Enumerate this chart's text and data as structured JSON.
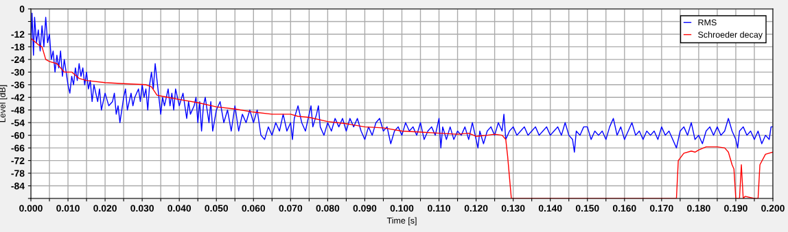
{
  "chart_data": {
    "type": "line",
    "xlabel": "Time [s]",
    "ylabel": "Level [dB]",
    "xlim": [
      0,
      0.2
    ],
    "ylim": [
      -90,
      0
    ],
    "xticks": [
      {
        "value": 0,
        "label": "0.000"
      },
      {
        "value": 0.005,
        "label": null
      },
      {
        "value": 0.01,
        "label": "0.010"
      },
      {
        "value": 0.015,
        "label": null
      },
      {
        "value": 0.02,
        "label": "0.020"
      },
      {
        "value": 0.025,
        "label": null
      },
      {
        "value": 0.03,
        "label": "0.030"
      },
      {
        "value": 0.035,
        "label": null
      },
      {
        "value": 0.04,
        "label": "0.040"
      },
      {
        "value": 0.045,
        "label": null
      },
      {
        "value": 0.05,
        "label": "0.050"
      },
      {
        "value": 0.055,
        "label": null
      },
      {
        "value": 0.06,
        "label": "0.060"
      },
      {
        "value": 0.065,
        "label": null
      },
      {
        "value": 0.07,
        "label": "0.070"
      },
      {
        "value": 0.075,
        "label": null
      },
      {
        "value": 0.08,
        "label": "0.080"
      },
      {
        "value": 0.085,
        "label": null
      },
      {
        "value": 0.09,
        "label": "0.090"
      },
      {
        "value": 0.095,
        "label": null
      },
      {
        "value": 0.1,
        "label": "0.100"
      },
      {
        "value": 0.105,
        "label": null
      },
      {
        "value": 0.11,
        "label": "0.110"
      },
      {
        "value": 0.115,
        "label": null
      },
      {
        "value": 0.12,
        "label": "0.120"
      },
      {
        "value": 0.125,
        "label": null
      },
      {
        "value": 0.13,
        "label": "0.130"
      },
      {
        "value": 0.135,
        "label": null
      },
      {
        "value": 0.14,
        "label": "0.140"
      },
      {
        "value": 0.145,
        "label": null
      },
      {
        "value": 0.15,
        "label": "0.150"
      },
      {
        "value": 0.155,
        "label": null
      },
      {
        "value": 0.16,
        "label": "0.160"
      },
      {
        "value": 0.165,
        "label": null
      },
      {
        "value": 0.17,
        "label": "0.170"
      },
      {
        "value": 0.175,
        "label": null
      },
      {
        "value": 0.18,
        "label": "0.180"
      },
      {
        "value": 0.185,
        "label": null
      },
      {
        "value": 0.19,
        "label": "0.190"
      },
      {
        "value": 0.195,
        "label": null
      },
      {
        "value": 0.2,
        "label": "0.200"
      }
    ],
    "yticks": [
      0,
      {
        "value": -6,
        "label": null
      },
      -12,
      -18,
      -24,
      -30,
      -36,
      -42,
      -48,
      -54,
      -60,
      -66,
      -72,
      -78,
      -84,
      {
        "value": -90,
        "label": null
      }
    ],
    "grid": true,
    "legend": "top right",
    "marker": "none",
    "line_style": "solid",
    "series": [
      {
        "name": "RMS",
        "color": "#0000ff",
        "x": [
          0,
          0.0003,
          0.0007,
          0.001,
          0.0015,
          0.002,
          0.0025,
          0.003,
          0.0035,
          0.004,
          0.0045,
          0.005,
          0.0055,
          0.006,
          0.0065,
          0.007,
          0.0075,
          0.008,
          0.0085,
          0.009,
          0.0095,
          0.01,
          0.0105,
          0.011,
          0.0115,
          0.012,
          0.0125,
          0.013,
          0.0135,
          0.014,
          0.0145,
          0.015,
          0.0155,
          0.016,
          0.0165,
          0.017,
          0.0175,
          0.018,
          0.0185,
          0.019,
          0.02,
          0.021,
          0.022,
          0.0225,
          0.023,
          0.0235,
          0.024,
          0.025,
          0.0255,
          0.026,
          0.027,
          0.0275,
          0.028,
          0.029,
          0.0295,
          0.03,
          0.0305,
          0.031,
          0.0315,
          0.032,
          0.0325,
          0.033,
          0.0335,
          0.034,
          0.0345,
          0.035,
          0.0355,
          0.036,
          0.037,
          0.0375,
          0.038,
          0.0385,
          0.039,
          0.04,
          0.041,
          0.042,
          0.0425,
          0.043,
          0.044,
          0.0445,
          0.045,
          0.0455,
          0.046,
          0.0465,
          0.047,
          0.048,
          0.0485,
          0.049,
          0.05,
          0.051,
          0.052,
          0.053,
          0.054,
          0.055,
          0.056,
          0.057,
          0.058,
          0.059,
          0.06,
          0.061,
          0.062,
          0.063,
          0.064,
          0.065,
          0.066,
          0.067,
          0.068,
          0.069,
          0.07,
          0.0705,
          0.071,
          0.072,
          0.073,
          0.074,
          0.075,
          0.0755,
          0.076,
          0.077,
          0.0775,
          0.078,
          0.079,
          0.08,
          0.081,
          0.082,
          0.083,
          0.084,
          0.085,
          0.086,
          0.087,
          0.088,
          0.089,
          0.09,
          0.091,
          0.092,
          0.093,
          0.094,
          0.095,
          0.096,
          0.097,
          0.098,
          0.099,
          0.1,
          0.101,
          0.102,
          0.103,
          0.104,
          0.105,
          0.106,
          0.107,
          0.108,
          0.109,
          0.11,
          0.1105,
          0.111,
          0.112,
          0.113,
          0.114,
          0.115,
          0.116,
          0.117,
          0.118,
          0.119,
          0.12,
          0.1205,
          0.121,
          0.122,
          0.123,
          0.124,
          0.125,
          0.126,
          0.127,
          0.1275,
          0.128,
          0.129,
          0.13,
          0.131,
          0.132,
          0.133,
          0.134,
          0.135,
          0.136,
          0.137,
          0.138,
          0.139,
          0.14,
          0.141,
          0.142,
          0.143,
          0.144,
          0.145,
          0.146,
          0.1465,
          0.147,
          0.148,
          0.149,
          0.15,
          0.151,
          0.152,
          0.153,
          0.154,
          0.155,
          0.156,
          0.157,
          0.158,
          0.159,
          0.16,
          0.161,
          0.162,
          0.163,
          0.164,
          0.165,
          0.166,
          0.167,
          0.168,
          0.169,
          0.17,
          0.171,
          0.172,
          0.173,
          0.174,
          0.175,
          0.176,
          0.177,
          0.178,
          0.179,
          0.18,
          0.181,
          0.182,
          0.183,
          0.184,
          0.185,
          0.186,
          0.187,
          0.188,
          0.189,
          0.19,
          0.1905,
          0.191,
          0.192,
          0.193,
          0.194,
          0.195,
          0.196,
          0.197,
          0.198,
          0.199,
          0.1995,
          0.2
        ],
        "values": [
          -18,
          -2,
          -22,
          -4,
          -16,
          -10,
          -20,
          -8,
          -18,
          -4,
          -16,
          -12,
          -24,
          -20,
          -30,
          -22,
          -28,
          -20,
          -32,
          -24,
          -30,
          -36,
          -40,
          -32,
          -36,
          -28,
          -34,
          -26,
          -32,
          -28,
          -36,
          -30,
          -38,
          -34,
          -44,
          -36,
          -40,
          -44,
          -38,
          -48,
          -40,
          -46,
          -44,
          -40,
          -50,
          -46,
          -54,
          -42,
          -38,
          -48,
          -40,
          -46,
          -42,
          -38,
          -44,
          -36,
          -42,
          -38,
          -48,
          -36,
          -30,
          -38,
          -26,
          -34,
          -42,
          -50,
          -42,
          -46,
          -38,
          -46,
          -40,
          -48,
          -38,
          -46,
          -40,
          -52,
          -44,
          -50,
          -46,
          -42,
          -54,
          -44,
          -58,
          -46,
          -42,
          -54,
          -44,
          -58,
          -48,
          -44,
          -54,
          -48,
          -58,
          -46,
          -58,
          -50,
          -54,
          -48,
          -54,
          -48,
          -60,
          -62,
          -56,
          -60,
          -54,
          -58,
          -50,
          -58,
          -54,
          -62,
          -52,
          -46,
          -54,
          -58,
          -50,
          -46,
          -56,
          -50,
          -46,
          -56,
          -60,
          -54,
          -58,
          -52,
          -56,
          -52,
          -58,
          -52,
          -56,
          -52,
          -58,
          -62,
          -56,
          -60,
          -54,
          -52,
          -58,
          -56,
          -64,
          -58,
          -56,
          -60,
          -54,
          -58,
          -56,
          -60,
          -54,
          -62,
          -58,
          -56,
          -60,
          -52,
          -66,
          -56,
          -62,
          -56,
          -62,
          -58,
          -60,
          -56,
          -62,
          -54,
          -62,
          -66,
          -58,
          -64,
          -58,
          -56,
          -60,
          -54,
          -58,
          -50,
          -62,
          -58,
          -56,
          -60,
          -58,
          -56,
          -60,
          -58,
          -56,
          -60,
          -58,
          -56,
          -60,
          -58,
          -56,
          -60,
          -54,
          -60,
          -62,
          -68,
          -58,
          -60,
          -56,
          -56,
          -62,
          -58,
          -60,
          -58,
          -62,
          -56,
          -52,
          -60,
          -56,
          -62,
          -58,
          -54,
          -60,
          -58,
          -62,
          -58,
          -60,
          -58,
          -62,
          -56,
          -60,
          -58,
          -62,
          -66,
          -58,
          -56,
          -60,
          -54,
          -62,
          -60,
          -64,
          -58,
          -56,
          -60,
          -56,
          -60,
          -58,
          -52,
          -58,
          -62,
          -66,
          -58,
          -56,
          -60,
          -58,
          -62,
          -58,
          -64,
          -60,
          -62,
          -56,
          -56
        ]
      },
      {
        "name": "Schroeder decay",
        "color": "#ff0000",
        "x": [
          0,
          0.002,
          0.003,
          0.004,
          0.005,
          0.007,
          0.009,
          0.011,
          0.013,
          0.015,
          0.02,
          0.025,
          0.031,
          0.0325,
          0.034,
          0.037,
          0.04,
          0.045,
          0.05,
          0.055,
          0.06,
          0.065,
          0.07,
          0.072,
          0.075,
          0.08,
          0.085,
          0.09,
          0.095,
          0.1,
          0.105,
          0.11,
          0.115,
          0.118,
          0.12,
          0.123,
          0.125,
          0.127,
          0.128,
          0.1285,
          0.129,
          0.1295,
          0.174,
          0.1745,
          0.176,
          0.178,
          0.179,
          0.18,
          0.182,
          0.185,
          0.187,
          0.188,
          0.189,
          0.1895,
          0.19,
          0.191,
          0.1915,
          0.192,
          0.1925,
          0.195,
          0.196,
          0.1965,
          0.198,
          0.2
        ],
        "values": [
          -14,
          -17,
          -18,
          -24,
          -25,
          -26,
          -30,
          -30,
          -33,
          -34,
          -35,
          -35.5,
          -36,
          -37,
          -41,
          -42,
          -43,
          -44.5,
          -46.5,
          -47.5,
          -49,
          -50,
          -50,
          -51,
          -51.5,
          -53.5,
          -54.5,
          -56,
          -56.5,
          -58,
          -58.5,
          -59,
          -59.5,
          -59,
          -60.5,
          -60,
          -59.5,
          -60,
          -62,
          -70,
          -80,
          -90,
          -90,
          -72,
          -68.5,
          -67.5,
          -68,
          -67,
          -65.5,
          -65.5,
          -66,
          -68,
          -74,
          -76,
          -90,
          -90,
          -74,
          -90,
          -89,
          -90,
          -90,
          -74,
          -69,
          -68
        ]
      }
    ]
  }
}
